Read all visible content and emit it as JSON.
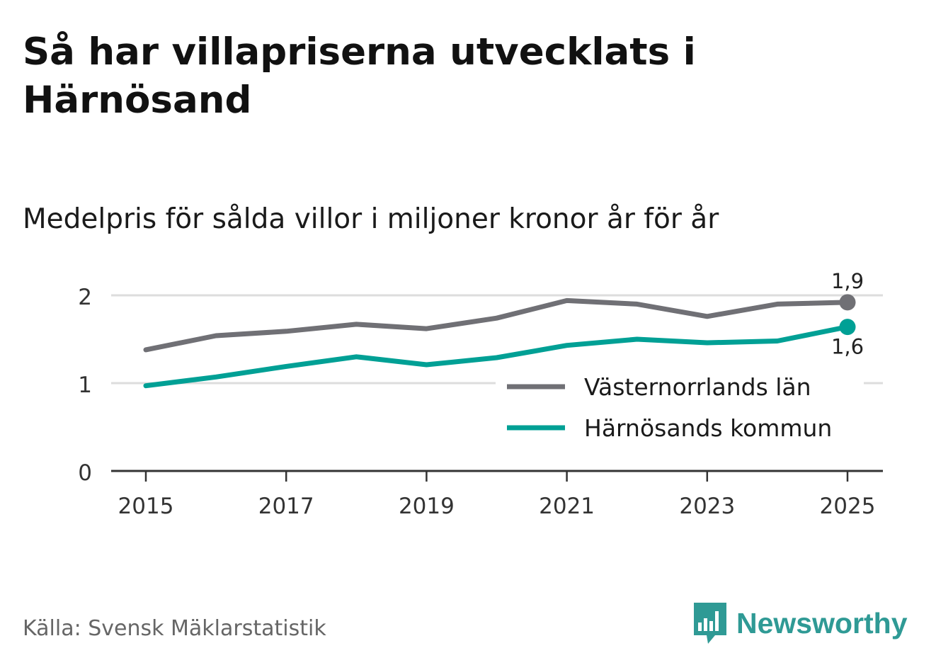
{
  "header": {
    "title": "Så har villapriserna utvecklats i Härnösand",
    "subtitle": "Medelpris för sålda villor i miljoner kronor år för år"
  },
  "footer": {
    "source": "Källa: Svensk Mäklarstatistik",
    "brand": "Newsworthy"
  },
  "colors": {
    "lan": "#707075",
    "kommun": "#00a095",
    "grid": "#dddddd",
    "axis": "#333333",
    "brand": "#2f9a95"
  },
  "chart_data": {
    "type": "line",
    "title": "Så har villapriserna utvecklats i Härnösand",
    "subtitle": "Medelpris för sålda villor i miljoner kronor år för år",
    "xlabel": "",
    "ylabel": "",
    "x": [
      2015,
      2016,
      2017,
      2018,
      2019,
      2020,
      2021,
      2022,
      2023,
      2024,
      2025
    ],
    "x_ticks": [
      "2015",
      "2017",
      "2019",
      "2021",
      "2023",
      "2025"
    ],
    "y_ticks": [
      "0",
      "1",
      "2"
    ],
    "ylim": [
      0,
      2.2
    ],
    "grid": true,
    "legend_position": "bottom-right",
    "series": [
      {
        "name": "Västernorrlands län",
        "color": "#707075",
        "values": [
          1.38,
          1.54,
          1.59,
          1.67,
          1.62,
          1.74,
          1.94,
          1.9,
          1.76,
          1.9,
          1.92
        ],
        "end_label": "1,9"
      },
      {
        "name": "Härnösands kommun",
        "color": "#00a095",
        "values": [
          0.97,
          1.07,
          1.19,
          1.3,
          1.21,
          1.29,
          1.43,
          1.5,
          1.46,
          1.48,
          1.64
        ],
        "end_label": "1,6"
      }
    ]
  }
}
